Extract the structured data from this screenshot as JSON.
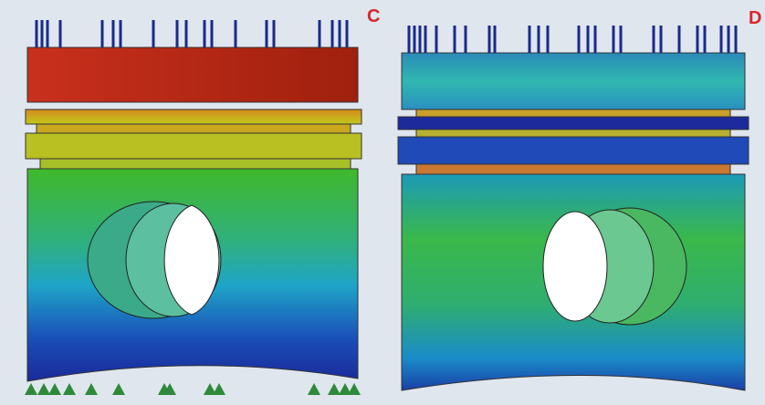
{
  "panels": [
    {
      "label": "C"
    },
    {
      "label": "D"
    }
  ]
}
